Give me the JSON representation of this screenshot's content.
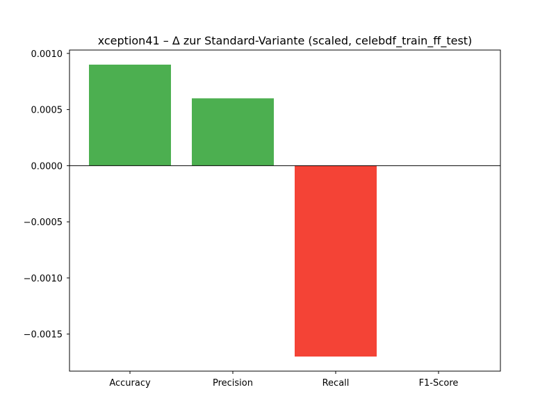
{
  "chart_data": {
    "type": "bar",
    "title": "xception41 – Δ zur Standard-Variante (scaled, celebdf_train_ff_test)",
    "xlabel": "",
    "ylabel": "",
    "categories": [
      "Accuracy",
      "Precision",
      "Recall",
      "F1-Score"
    ],
    "values": [
      0.0009,
      0.0006,
      -0.0017,
      0.0
    ],
    "ylim": [
      -0.00183,
      0.00103
    ],
    "yticks": [
      0.001,
      0.0005,
      0.0,
      -0.0005,
      -0.001,
      -0.0015
    ],
    "ytick_labels": [
      "0.0010",
      "0.0005",
      "0.0000",
      "−0.0005",
      "−0.0010",
      "−0.0015"
    ],
    "grid": false,
    "legend": "none",
    "colors": {
      "positive": "#4caf50",
      "negative": "#f44336",
      "zero_line": "#000000"
    }
  }
}
